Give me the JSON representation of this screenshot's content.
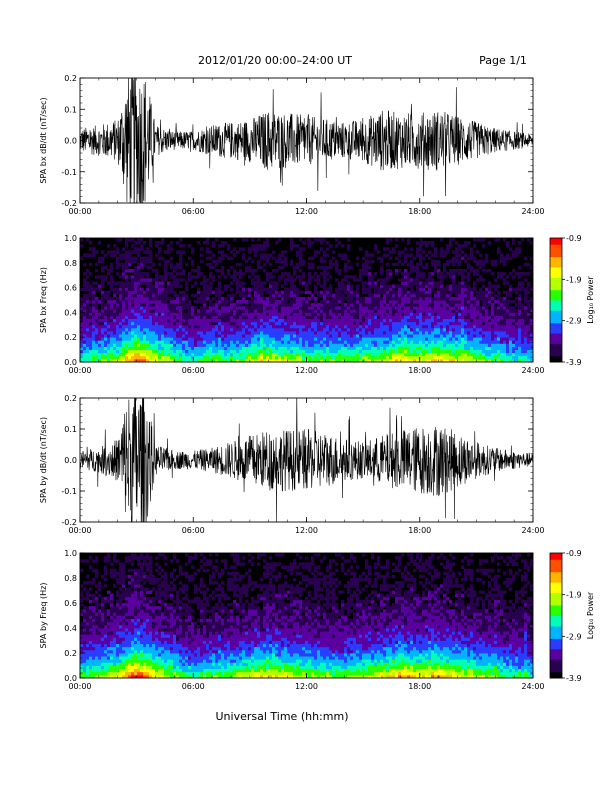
{
  "header": {
    "title": "2012/01/20  00:00–24:00 UT",
    "page": "Page 1/1"
  },
  "x_axis_label": "Universal Time (hh:mm)",
  "time_ticks": [
    "00:00",
    "06:00",
    "12:00",
    "18:00",
    "24:00"
  ],
  "colorbar": {
    "label": "Log₁₀ Power",
    "ticks": [
      "-0.9",
      "-1.9",
      "-2.9",
      "-3.9"
    ],
    "range": [
      -3.9,
      -0.9
    ],
    "colors": [
      "#000000",
      "#2a0050",
      "#5a00a0",
      "#2a3cff",
      "#00b4ff",
      "#00ffb4",
      "#28ff00",
      "#b4ff00",
      "#ffff00",
      "#ffb400",
      "#ff5000",
      "#ff0000"
    ]
  },
  "chart_data": [
    {
      "type": "line",
      "ylabel": "SPA bx dB/dt (nT/sec)",
      "x_range_hours": [
        0,
        24
      ],
      "ylim": [
        -0.2,
        0.2
      ],
      "y_ticks": [
        "0.2",
        "0.1",
        "0.0",
        "-0.1",
        "-0.2"
      ],
      "series_color": "#000000",
      "envelope_hours": [
        0,
        1,
        2,
        2.5,
        3,
        3.5,
        4,
        5,
        6,
        7,
        8,
        9,
        10,
        11,
        12,
        13,
        14,
        15,
        16,
        17,
        18,
        19,
        20,
        21,
        22,
        23,
        24
      ],
      "envelope_amplitude": [
        0.04,
        0.05,
        0.07,
        0.22,
        0.25,
        0.22,
        0.05,
        0.03,
        0.03,
        0.05,
        0.06,
        0.07,
        0.1,
        0.09,
        0.08,
        0.07,
        0.06,
        0.07,
        0.1,
        0.09,
        0.09,
        0.1,
        0.08,
        0.06,
        0.04,
        0.03,
        0.02
      ]
    },
    {
      "type": "heatmap",
      "ylabel": "SPA bx Freq (Hz)",
      "x_range_hours": [
        0,
        24
      ],
      "ylim": [
        0,
        1.0
      ],
      "y_ticks": [
        "1.0",
        "0.8",
        "0.6",
        "0.4",
        "0.2",
        "0.0"
      ],
      "z_range": [
        -3.9,
        -0.9
      ],
      "activity_hours": [
        0,
        2,
        3,
        4,
        6,
        7,
        8,
        10,
        12,
        14,
        16,
        17,
        18,
        19,
        20,
        22,
        24
      ],
      "activity_level": [
        0.35,
        0.5,
        0.75,
        0.55,
        0.35,
        0.45,
        0.4,
        0.55,
        0.45,
        0.45,
        0.5,
        0.6,
        0.55,
        0.6,
        0.55,
        0.4,
        0.3
      ]
    },
    {
      "type": "line",
      "ylabel": "SPA by dB/dt (nT/sec)",
      "x_range_hours": [
        0,
        24
      ],
      "ylim": [
        -0.2,
        0.2
      ],
      "y_ticks": [
        "0.2",
        "0.1",
        "0.0",
        "-0.1",
        "-0.2"
      ],
      "series_color": "#000000",
      "envelope_hours": [
        0,
        1,
        2,
        2.5,
        3,
        3.5,
        4,
        5,
        6,
        7,
        8,
        9,
        10,
        11,
        12,
        13,
        14,
        15,
        16,
        17,
        18,
        19,
        20,
        21,
        22,
        23,
        24
      ],
      "envelope_amplitude": [
        0.03,
        0.04,
        0.07,
        0.22,
        0.25,
        0.22,
        0.05,
        0.03,
        0.03,
        0.04,
        0.06,
        0.08,
        0.1,
        0.1,
        0.1,
        0.09,
        0.07,
        0.06,
        0.08,
        0.1,
        0.11,
        0.12,
        0.09,
        0.06,
        0.04,
        0.03,
        0.02
      ]
    },
    {
      "type": "heatmap",
      "ylabel": "SPA by Freq (Hz)",
      "x_range_hours": [
        0,
        24
      ],
      "ylim": [
        0,
        1.0
      ],
      "y_ticks": [
        "1.0",
        "0.8",
        "0.6",
        "0.4",
        "0.2",
        "0.0"
      ],
      "z_range": [
        -3.9,
        -0.9
      ],
      "activity_hours": [
        0,
        2,
        3,
        4,
        6,
        7,
        8,
        10,
        12,
        14,
        16,
        17,
        18,
        19,
        20,
        22,
        24
      ],
      "activity_level": [
        0.4,
        0.55,
        0.8,
        0.6,
        0.35,
        0.45,
        0.45,
        0.6,
        0.5,
        0.45,
        0.55,
        0.65,
        0.6,
        0.65,
        0.55,
        0.45,
        0.35
      ]
    }
  ]
}
